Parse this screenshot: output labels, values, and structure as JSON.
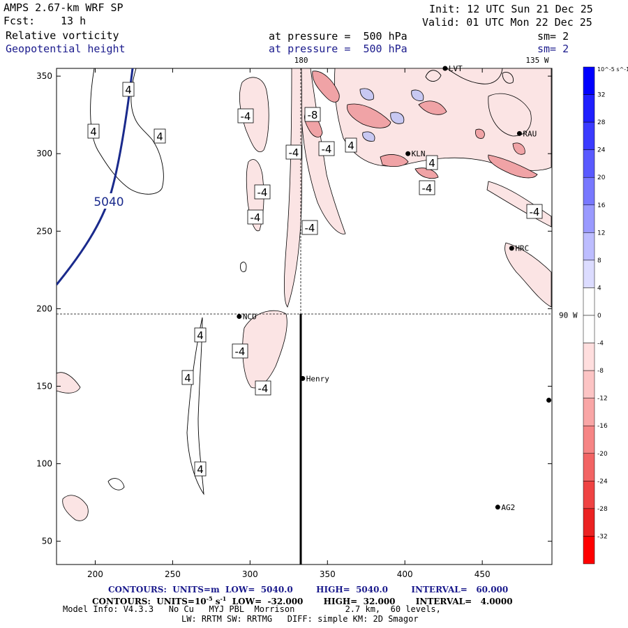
{
  "header": {
    "model": "AMPS 2.67-km WRF SP",
    "init": "Init: 12 UTC Sun 21 Dec 25",
    "fcst_label": "Fcst:",
    "fcst_value": "13 h",
    "valid": "Valid: 01 UTC Mon 22 Dec 25",
    "field1": "Relative vorticity",
    "field1_pressure": "at pressure =  500 hPa",
    "field1_sm": "sm= 2",
    "field2": "Geopotential height",
    "field2_pressure": "at pressure =  500 hPa",
    "field2_sm": "sm= 2"
  },
  "footer": {
    "contours1": "CONTOURS:  UNITS=m  LOW=  5040.0        HIGH=  5040.0        INTERVAL=   60.000",
    "contours2_a": "CONTOURS:  UNITS=10",
    "contours2_exp": "-5",
    "contours2_b": " s",
    "contours2_exp2": "-1",
    "contours2_c": "  LOW=  -32.000       HIGH=  32.000       INTERVAL=   4.0000",
    "model_info": "Model Info: V4.3.3   No Cu   MYJ PBL  Morrison          2.7 km,  60 levels,",
    "model_info2": "LW: RRTM SW: RRTMG   DIFF: simple KM: 2D Smagor"
  },
  "chart_data": {
    "type": "heatmap",
    "xlim": [
      175,
      495
    ],
    "ylim": [
      35,
      355
    ],
    "x_ticks": [
      200,
      250,
      300,
      350,
      400,
      450
    ],
    "y_ticks": [
      50,
      100,
      150,
      200,
      250,
      300,
      350
    ],
    "longitude_labels": [
      {
        "label": "180",
        "x": 333,
        "y": 355
      },
      {
        "label": "135 W",
        "x": 490,
        "y": 355
      },
      {
        "label": "90 W",
        "x": 495,
        "y": 196
      }
    ],
    "geopotential_contour": {
      "value": "5040",
      "units": "m"
    },
    "vorticity_contour_labels": [
      "4",
      "-4",
      "-8"
    ],
    "stations": [
      {
        "name": "NCO",
        "x": 293,
        "y": 195
      },
      {
        "name": "Henry",
        "x": 334,
        "y": 155
      },
      {
        "name": "KLN",
        "x": 402,
        "y": 300
      },
      {
        "name": "RAU",
        "x": 474,
        "y": 313
      },
      {
        "name": "HRC",
        "x": 469,
        "y": 239
      },
      {
        "name": "AG2",
        "x": 460,
        "y": 72
      },
      {
        "name": "LVT",
        "x": 426,
        "y": 355
      },
      {
        "name": "",
        "x": 493,
        "y": 141
      }
    ],
    "colorbar": {
      "units": "10^-5 s^-1",
      "range": [
        -36,
        36
      ],
      "ticks": [
        32,
        28,
        24,
        20,
        16,
        12,
        8,
        4,
        0,
        -4,
        -8,
        -12,
        -16,
        -20,
        -24,
        -28,
        -32
      ],
      "high_color": "#0000ff",
      "low_color": "#ff0000"
    }
  }
}
